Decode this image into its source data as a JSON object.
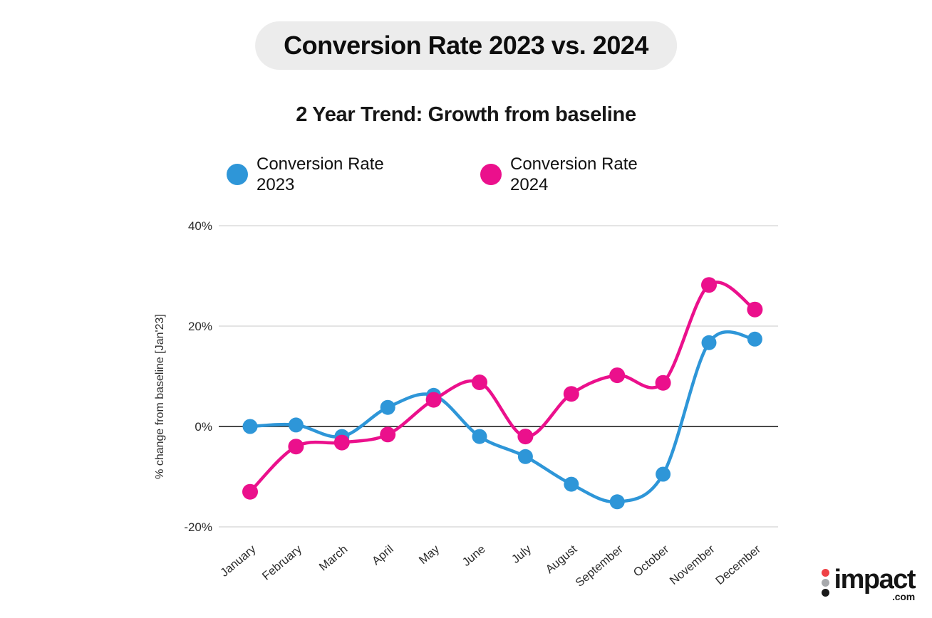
{
  "title": "Conversion Rate 2023 vs. 2024",
  "subtitle": "2 Year Trend: Growth from baseline",
  "legend": [
    {
      "label": "Conversion Rate 2023",
      "color": "#2E96D8"
    },
    {
      "label": "Conversion Rate 2024",
      "color": "#EB108C"
    }
  ],
  "chart_data": {
    "type": "line",
    "categories": [
      "January",
      "February",
      "March",
      "April",
      "May",
      "June",
      "July",
      "August",
      "September",
      "October",
      "November",
      "December"
    ],
    "series": [
      {
        "name": "Conversion Rate 2023",
        "color": "#2E96D8",
        "values": [
          0,
          0.3,
          -2,
          3.8,
          6.2,
          -2,
          -6,
          -11.5,
          -15,
          -9.5,
          16.7,
          17.4
        ]
      },
      {
        "name": "Conversion Rate 2024",
        "color": "#EB108C",
        "values": [
          -13,
          -4,
          -3.2,
          -1.6,
          5.3,
          8.8,
          -2,
          6.5,
          10.2,
          8.7,
          28.2,
          23.3
        ]
      }
    ],
    "title": "Conversion Rate 2023 vs. 2024",
    "subtitle": "2 Year Trend: Growth from baseline",
    "xlabel": "",
    "ylabel": "% change from baseline [Jan'23]",
    "yticks": [
      40,
      20,
      0,
      -20
    ],
    "ytick_labels": [
      "40%",
      "20%",
      "0%",
      "-20%"
    ],
    "ylim": [
      -25,
      45
    ],
    "grid": true,
    "zero_line": true,
    "legend_position": "top",
    "grid_color": "#dcdcdc",
    "zero_line_color": "#4a4a4a"
  },
  "logo": {
    "text": "impact",
    "suffix": ".com",
    "dot_colors": [
      "#EF4146",
      "#A7A9AC",
      "#1A1A1A"
    ]
  }
}
